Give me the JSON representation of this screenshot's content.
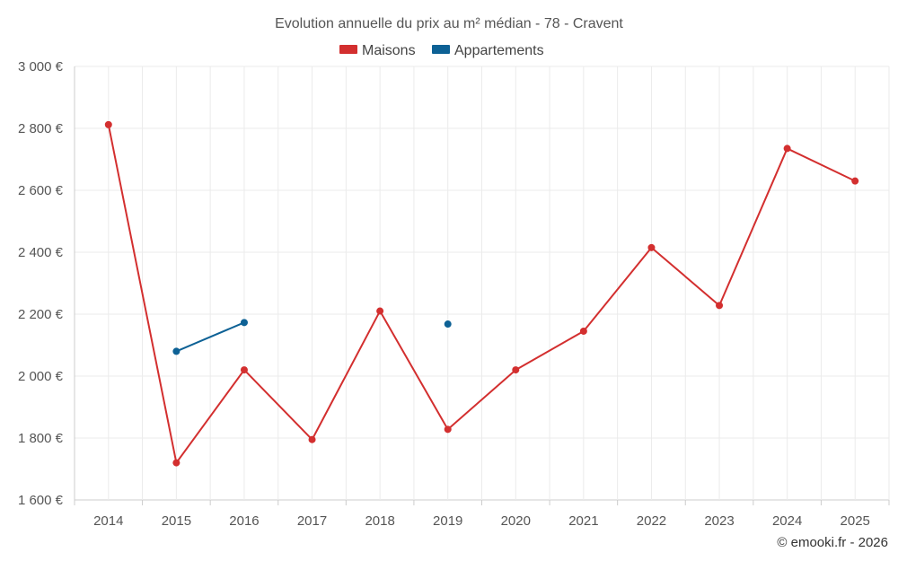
{
  "chart_data": {
    "type": "line",
    "title": "Evolution annuelle du prix au m² médian - 78 - Cravent",
    "xlabel": "",
    "ylabel": "",
    "categories": [
      "2014",
      "2015",
      "2016",
      "2017",
      "2018",
      "2019",
      "2020",
      "2021",
      "2022",
      "2023",
      "2024",
      "2025"
    ],
    "ylim": [
      1600,
      3000
    ],
    "yticks": [
      1600,
      1800,
      2000,
      2200,
      2400,
      2600,
      2800,
      3000
    ],
    "ytick_labels": [
      "1 600 €",
      "1 800 €",
      "2 000 €",
      "2 200 €",
      "2 400 €",
      "2 600 €",
      "2 800 €",
      "3 000 €"
    ],
    "grid": true,
    "legend_position": "top-center",
    "series": [
      {
        "name": "Maisons",
        "color": "#d32f2f",
        "values": [
          2812,
          1720,
          2020,
          1795,
          2210,
          1828,
          2020,
          2145,
          2415,
          2228,
          2735,
          2630
        ]
      },
      {
        "name": "Appartements",
        "color": "#0d6195",
        "values": [
          null,
          2080,
          2173,
          null,
          null,
          2168,
          null,
          null,
          null,
          null,
          null,
          null
        ]
      }
    ]
  },
  "footer": {
    "credit": "© emooki.fr - 2026"
  }
}
